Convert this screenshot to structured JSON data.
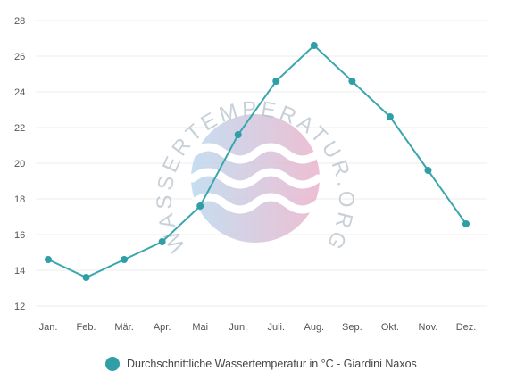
{
  "chart_data": {
    "type": "line",
    "categories": [
      "Jan.",
      "Feb.",
      "Mär.",
      "Apr.",
      "Mai",
      "Jun.",
      "Juli.",
      "Aug.",
      "Sep.",
      "Okt.",
      "Nov.",
      "Dez."
    ],
    "series": [
      {
        "name": "Durchschnittliche Wassertemperatur in °C - Giardini Naxos",
        "values": [
          14.6,
          13.6,
          14.6,
          15.6,
          17.6,
          21.6,
          24.6,
          26.6,
          24.6,
          22.6,
          19.6,
          16.6
        ]
      }
    ],
    "yticks": [
      12,
      14,
      16,
      18,
      20,
      22,
      24,
      26,
      28
    ],
    "ylim": [
      12,
      28
    ],
    "grid": true,
    "legend_position": "bottom",
    "line_color": "#3aa6ad",
    "marker_color": "#2f9ea6"
  },
  "legend": {
    "label": "Durchschnittliche Wassertemperatur in °C - Giardini Naxos",
    "color": "#2f9ea6"
  },
  "watermark": {
    "text": "WASSERTEMPERATUR.ORG",
    "color_start": "#bcd8ee",
    "color_end": "#eab3cb"
  }
}
